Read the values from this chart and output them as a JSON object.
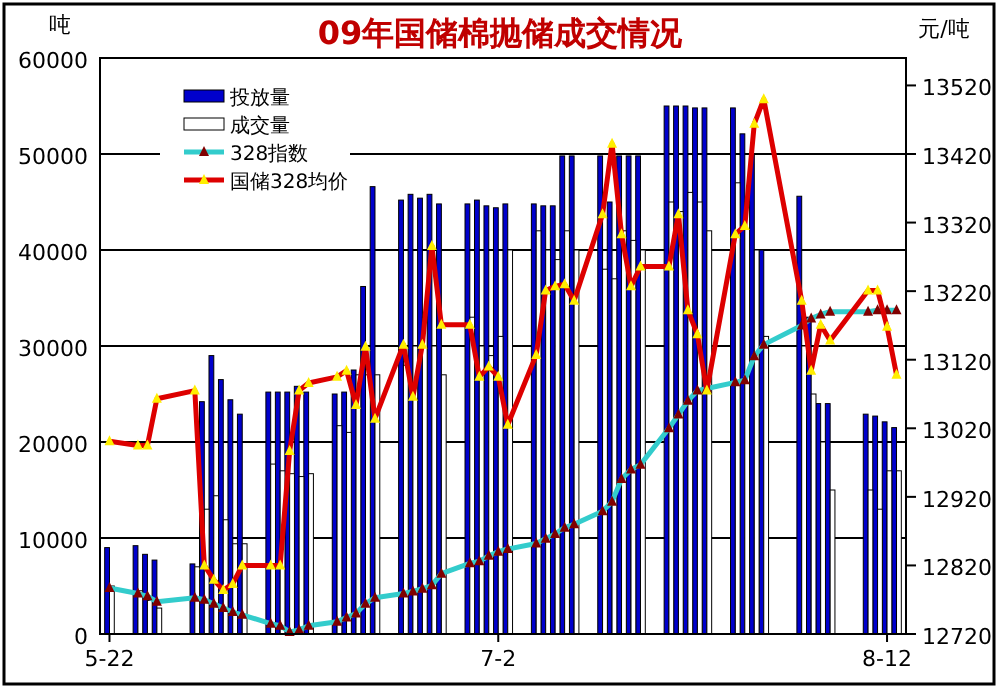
{
  "chart_data": {
    "type": "bar",
    "title": "09年国储棉抛储成交情况",
    "ylabel": "吨",
    "y2label": "元/吨",
    "xlim": [
      "--05-21",
      "--08-14"
    ],
    "xticks": [
      {
        "value": "--05-22",
        "label": "5-22"
      },
      {
        "value": "--07-02",
        "label": "7-2"
      },
      {
        "value": "--08-12",
        "label": "8-12"
      }
    ],
    "ylim": [
      0,
      60000
    ],
    "yticks": [
      0,
      10000,
      20000,
      30000,
      40000,
      50000,
      60000
    ],
    "y2lim": [
      12720,
      13560
    ],
    "y2ticks": [
      12720,
      12820,
      12920,
      13020,
      13120,
      13220,
      13320,
      13420,
      13520
    ],
    "grid": "y",
    "legend": "top left",
    "series": [
      {
        "name": "投放量",
        "color": "#0000cc",
        "x": [
          "--05-22",
          "--05-25",
          "--05-26",
          "--05-27",
          "--05-31",
          "--06-01",
          "--06-02",
          "--06-03",
          "--06-04",
          "--06-05",
          "--06-08",
          "--06-09",
          "--06-10",
          "--06-11",
          "--06-12",
          "--06-15",
          "--06-16",
          "--06-17",
          "--06-18",
          "--06-19",
          "--06-22",
          "--06-23",
          "--06-24",
          "--06-25",
          "--06-26",
          "--06-29",
          "--06-30",
          "--07-01",
          "--07-02",
          "--07-03",
          "--07-06",
          "--07-07",
          "--07-08",
          "--07-09",
          "--07-10",
          "--07-13",
          "--07-14",
          "--07-15",
          "--07-16",
          "--07-17",
          "--07-20",
          "--07-21",
          "--07-22",
          "--07-23",
          "--07-24",
          "--07-27",
          "--07-28",
          "--07-29",
          "--07-30",
          "--08-03",
          "--08-04",
          "--08-05",
          "--08-06",
          "--08-10",
          "--08-11",
          "--08-12",
          "--08-13"
        ],
        "values": [
          9000,
          9200,
          8300,
          7700,
          7300,
          24200,
          29000,
          26500,
          24400,
          22900,
          25200,
          25200,
          25200,
          25800,
          25200,
          25000,
          25200,
          27500,
          36200,
          46600,
          45200,
          45800,
          45400,
          45800,
          44800,
          44800,
          45200,
          44600,
          44400,
          44800,
          44800,
          44600,
          44600,
          49800,
          49800,
          49800,
          45000,
          49800,
          49800,
          49800,
          55000,
          55000,
          55000,
          54800,
          54800,
          54800,
          52100,
          50000,
          40000,
          45600,
          33000,
          24000,
          24000,
          22900,
          22700,
          22100,
          21500
        ]
      },
      {
        "name": "成交量",
        "color": "#ffffff",
        "x": [
          "--05-22",
          "--05-25",
          "--05-26",
          "--05-27",
          "--05-31",
          "--06-01",
          "--06-02",
          "--06-03",
          "--06-04",
          "--06-05",
          "--06-08",
          "--06-09",
          "--06-10",
          "--06-11",
          "--06-12",
          "--06-15",
          "--06-16",
          "--06-17",
          "--06-18",
          "--06-19",
          "--06-22",
          "--06-23",
          "--06-24",
          "--06-25",
          "--06-26",
          "--06-29",
          "--06-30",
          "--07-01",
          "--07-02",
          "--07-03",
          "--07-06",
          "--07-07",
          "--07-08",
          "--07-09",
          "--07-10",
          "--07-13",
          "--07-14",
          "--07-15",
          "--07-16",
          "--07-17",
          "--07-20",
          "--07-21",
          "--07-22",
          "--07-23",
          "--07-24",
          "--07-27",
          "--07-28",
          "--07-29",
          "--07-30",
          "--08-03",
          "--08-04",
          "--08-05",
          "--08-06",
          "--08-10",
          "--08-11",
          "--08-12",
          "--08-13"
        ],
        "values": [
          5000,
          4500,
          3500,
          2700,
          7000,
          13000,
          14400,
          11900,
          9400,
          9400,
          17700,
          17000,
          16700,
          16400,
          16700,
          21700,
          21000,
          27000,
          27000,
          27000,
          28000,
          30000,
          33000,
          30000,
          27000,
          33000,
          30000,
          29000,
          31000,
          40000,
          42000,
          40000,
          39000,
          42000,
          40000,
          38000,
          37000,
          42000,
          41000,
          40000,
          45000,
          44000,
          46000,
          45000,
          42000,
          47000,
          45000,
          40000,
          31000,
          30000,
          25000,
          20000,
          15000,
          15000,
          13000,
          17000,
          17000
        ]
      },
      {
        "name": "328指数",
        "type": "line",
        "axis": "y2",
        "color": "#33cccc",
        "marker": "triangle",
        "x": [
          "--05-22",
          "--05-25",
          "--05-26",
          "--05-27",
          "--05-31",
          "--06-01",
          "--06-02",
          "--06-03",
          "--06-04",
          "--06-05",
          "--06-08",
          "--06-09",
          "--06-10",
          "--06-11",
          "--06-12",
          "--06-15",
          "--06-16",
          "--06-17",
          "--06-18",
          "--06-19",
          "--06-22",
          "--06-23",
          "--06-24",
          "--06-25",
          "--06-26",
          "--06-29",
          "--06-30",
          "--07-01",
          "--07-02",
          "--07-03",
          "--07-06",
          "--07-07",
          "--07-08",
          "--07-09",
          "--07-10",
          "--07-13",
          "--07-14",
          "--07-15",
          "--07-16",
          "--07-17",
          "--07-20",
          "--07-21",
          "--07-22",
          "--07-23",
          "--07-24",
          "--07-27",
          "--07-28",
          "--07-29",
          "--07-30",
          "--08-03",
          "--08-04",
          "--08-05",
          "--08-06",
          "--08-10",
          "--08-11",
          "--08-12",
          "--08-13"
        ],
        "values": [
          12787,
          12779,
          12775,
          12767,
          12773,
          12770,
          12764,
          12758,
          12752,
          12748,
          12735,
          12732,
          12723,
          12726,
          12732,
          12738,
          12744,
          12750,
          12764,
          12773,
          12779,
          12782,
          12786,
          12791,
          12808,
          12823,
          12826,
          12834,
          12840,
          12844,
          12852,
          12859,
          12866,
          12875,
          12880,
          12899,
          12913,
          12946,
          12960,
          12967,
          13020,
          13040,
          13060,
          13075,
          13078,
          13087,
          13090,
          13125,
          13142,
          13170,
          13180,
          13186,
          13190,
          13190,
          13192,
          13192,
          13192
        ]
      },
      {
        "name": "国储328均价",
        "type": "line",
        "axis": "y2",
        "color": "#dd0000",
        "marker": "triangle",
        "x": [
          "--05-22",
          "--05-25",
          "--05-26",
          "--05-27",
          "--05-31",
          "--06-01",
          "--06-02",
          "--06-03",
          "--06-04",
          "--06-05",
          "--06-08",
          "--06-09",
          "--06-10",
          "--06-11",
          "--06-12",
          "--06-15",
          "--06-16",
          "--06-17",
          "--06-18",
          "--06-19",
          "--06-22",
          "--06-23",
          "--06-24",
          "--06-25",
          "--06-26",
          "--06-29",
          "--06-30",
          "--07-01",
          "--07-02",
          "--07-03",
          "--07-06",
          "--07-07",
          "--07-08",
          "--07-09",
          "--07-10",
          "--07-13",
          "--07-14",
          "--07-15",
          "--07-16",
          "--07-17",
          "--07-20",
          "--07-21",
          "--07-22",
          "--07-23",
          "--07-24",
          "--07-27",
          "--07-28",
          "--07-29",
          "--07-30",
          "--08-03",
          "--08-04",
          "--08-05",
          "--08-06",
          "--08-10",
          "--08-11",
          "--08-12",
          "--08-13"
        ],
        "values": [
          13001,
          12995,
          12995,
          13063,
          13075,
          12820,
          12799,
          12784,
          12793,
          12820,
          12820,
          12820,
          12987,
          13075,
          13086,
          13095,
          13104,
          13054,
          13139,
          13034,
          13142,
          13066,
          13142,
          13286,
          13171,
          13171,
          13095,
          13110,
          13095,
          13025,
          13127,
          13221,
          13227,
          13230,
          13206,
          13332,
          13435,
          13303,
          13227,
          13256,
          13256,
          13332,
          13192,
          13157,
          13075,
          13303,
          13315,
          13464,
          13500,
          13206,
          13104,
          13171,
          13148,
          13221,
          13221,
          13168,
          13098
        ]
      }
    ]
  }
}
